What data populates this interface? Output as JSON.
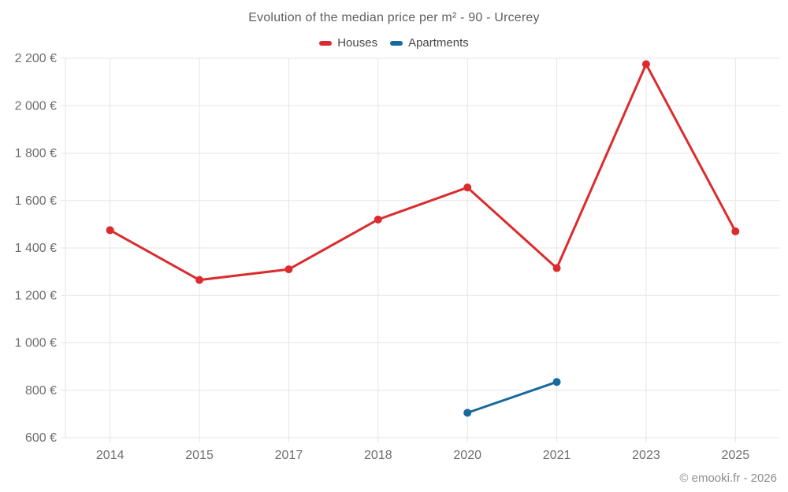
{
  "title": "Evolution of the median price per m² - 90 - Urcerey",
  "legend": {
    "items": [
      {
        "label": "Houses",
        "color": "#dc2b2d"
      },
      {
        "label": "Apartments",
        "color": "#17699e"
      }
    ]
  },
  "footer": {
    "attribution": "© emooki.fr - 2026"
  },
  "colors": {
    "houses": "#dc2b2d",
    "apartments": "#17699e",
    "gridline": "#e6e6e6",
    "tick_label": "#6f6f6f",
    "title_text": "#5e5e62",
    "background": "#ffffff"
  },
  "chart_data": {
    "type": "line",
    "title": "Evolution of the median price per m² - 90 - Urcerey",
    "categories": [
      "2014",
      "2015",
      "2017",
      "2018",
      "2020",
      "2021",
      "2023",
      "2025"
    ],
    "series": [
      {
        "name": "Houses",
        "color": "#dc2b2d",
        "values": [
          1475,
          1265,
          1310,
          1520,
          1655,
          1315,
          2175,
          1470
        ]
      },
      {
        "name": "Apartments",
        "color": "#17699e",
        "values": [
          null,
          null,
          null,
          null,
          705,
          835,
          null,
          null
        ]
      }
    ],
    "xlabel": "",
    "ylabel": "",
    "ylim": [
      600,
      2200
    ],
    "ytick_step": 200,
    "ytick_suffix": " €",
    "grid": true,
    "legend_position": "top",
    "marker_radius": 5,
    "line_width": 3
  }
}
